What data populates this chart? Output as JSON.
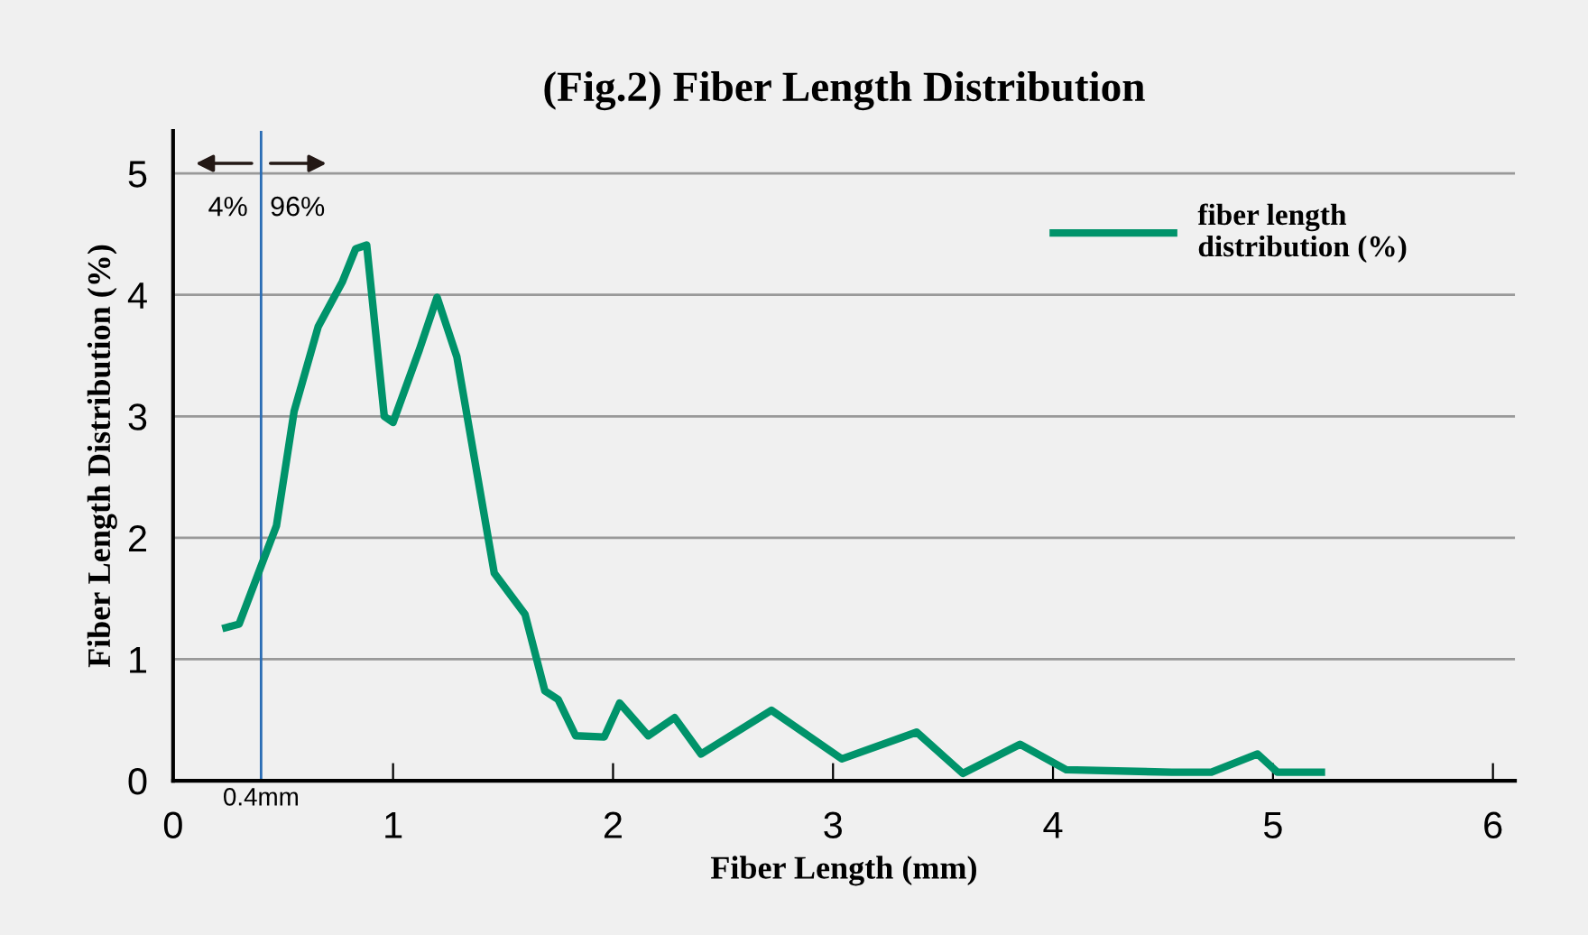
{
  "chart_data": {
    "type": "line",
    "title": "(Fig.2) Fiber Length Distribution",
    "xlabel": "Fiber Length (mm)",
    "ylabel": "Fiber Length Distribution (%)",
    "x": [
      0.24,
      0.3,
      0.43,
      0.47,
      0.55,
      0.66,
      0.77,
      0.83,
      0.88,
      0.96,
      1.0,
      1.12,
      1.2,
      1.29,
      1.46,
      1.6,
      1.69,
      1.75,
      1.83,
      1.96,
      2.03,
      2.16,
      2.28,
      2.4,
      2.72,
      3.04,
      3.38,
      3.59,
      3.85,
      4.06,
      4.54,
      4.72,
      4.93,
      5.02,
      5.22
    ],
    "series": [
      {
        "name": "fiber length\ndistribution (%)",
        "color": "#00936a",
        "values": [
          1.26,
          1.29,
          1.91,
          2.1,
          3.04,
          3.74,
          4.11,
          4.38,
          4.41,
          3.0,
          2.95,
          3.55,
          3.98,
          3.49,
          1.71,
          1.37,
          0.74,
          0.67,
          0.37,
          0.36,
          0.64,
          0.37,
          0.52,
          0.22,
          0.58,
          0.18,
          0.4,
          0.06,
          0.3,
          0.09,
          0.07,
          0.07,
          0.22,
          0.07,
          0.07
        ]
      }
    ],
    "xlim": [
      0,
      6.1
    ],
    "ylim": [
      0,
      5.35
    ],
    "xticks": [
      0,
      1,
      2,
      3,
      4,
      5,
      6
    ],
    "yticks": [
      0,
      1,
      2,
      3,
      4,
      5
    ],
    "ref_lines": [
      {
        "axis": "x",
        "value": 0.4,
        "label": "0.4mm",
        "color": "#2a6db5"
      }
    ],
    "annotations": [
      "4%",
      "96%"
    ],
    "grid": "y",
    "legend": "top right",
    "line_style": "solid",
    "marker": "none"
  }
}
